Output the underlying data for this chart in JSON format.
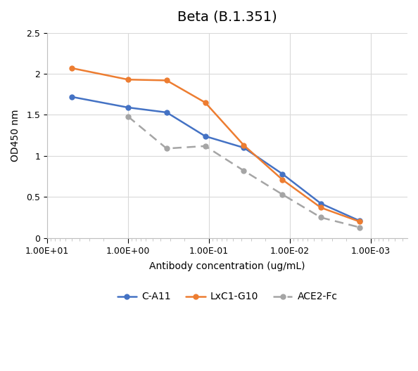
{
  "title": "Beta (B.1.351)",
  "xlabel": "Antibody concentration (ug/mL)",
  "ylabel": "OD450 nm",
  "ylim": [
    0,
    2.5
  ],
  "yticks": [
    0,
    0.5,
    1.0,
    1.5,
    2.0,
    2.5
  ],
  "ytick_labels": [
    "0",
    "0.5",
    "1",
    "1.5",
    "2",
    "2.5"
  ],
  "xlim_left": 10,
  "xlim_right": 0.00035,
  "x_ca11": [
    5.0,
    1.0,
    0.333,
    0.111,
    0.037,
    0.0123,
    0.00412,
    0.00137
  ],
  "y_ca11": [
    1.72,
    1.59,
    1.53,
    1.24,
    1.1,
    0.78,
    0.42,
    0.21
  ],
  "x_lxc1": [
    5.0,
    1.0,
    0.333,
    0.111,
    0.037,
    0.0123,
    0.00412,
    0.00137
  ],
  "y_lxc1": [
    2.07,
    1.93,
    1.92,
    1.65,
    1.13,
    0.71,
    0.37,
    0.2
  ],
  "x_ace2": [
    1.0,
    0.333,
    0.111,
    0.037,
    0.0123,
    0.00412,
    0.00137
  ],
  "y_ace2": [
    1.48,
    1.09,
    1.12,
    0.82,
    0.53,
    0.25,
    0.13
  ],
  "color_ca11": "#4472C4",
  "color_lxc1": "#ED7D31",
  "color_ace2": "#A5A5A5",
  "grid_color": "#D9D9D9",
  "title_fontsize": 14,
  "label_fontsize": 10,
  "tick_fontsize": 9,
  "legend_fontsize": 10,
  "marker_size": 5,
  "line_width": 1.8
}
